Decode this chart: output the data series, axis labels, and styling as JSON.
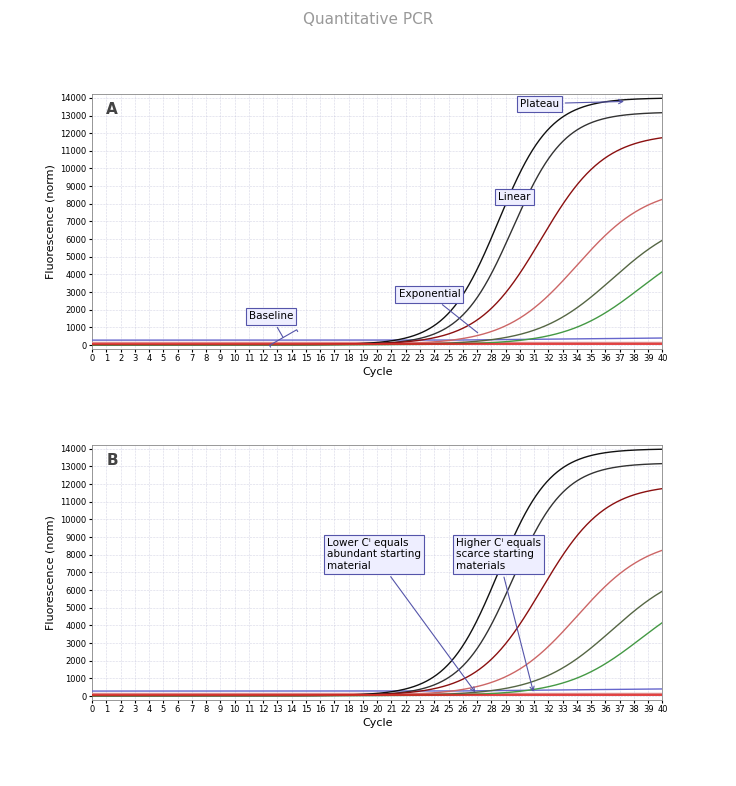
{
  "title": "Quantitative PCR",
  "title_fontsize": 11,
  "title_color": "#999999",
  "xlabel": "Cycle",
  "ylabel": "Fluorescence (norm)",
  "xlim": [
    0,
    40
  ],
  "ylim": [
    -200,
    14200
  ],
  "yticks": [
    0,
    1000,
    2000,
    3000,
    4000,
    5000,
    6000,
    7000,
    8000,
    9000,
    10000,
    11000,
    12000,
    13000,
    14000
  ],
  "xticks": [
    0,
    1,
    2,
    3,
    4,
    5,
    6,
    7,
    8,
    9,
    10,
    11,
    12,
    13,
    14,
    15,
    16,
    17,
    18,
    19,
    20,
    21,
    22,
    23,
    24,
    25,
    26,
    27,
    28,
    29,
    30,
    31,
    32,
    33,
    34,
    35,
    36,
    37,
    38,
    39,
    40
  ],
  "threshold_y": 80,
  "threshold_color": "#dd2222",
  "bg_color": "#ffffff",
  "grid_color": "#aaaacc",
  "panel_A_label": "A",
  "panel_B_label": "B",
  "annotation_box_color": "#5555aa",
  "annotation_box_facecolor": "#eeeeff",
  "curves": [
    {
      "midpoint": 28.5,
      "k": 0.55,
      "ymax": 14000,
      "baseline": 20,
      "color": "#111111",
      "lw": 1.0
    },
    {
      "midpoint": 29.5,
      "k": 0.55,
      "ymax": 13200,
      "baseline": 20,
      "color": "#333333",
      "lw": 1.0
    },
    {
      "midpoint": 31.5,
      "k": 0.45,
      "ymax": 12000,
      "baseline": 20,
      "color": "#8B1010",
      "lw": 1.0
    },
    {
      "midpoint": 34.0,
      "k": 0.4,
      "ymax": 9000,
      "baseline": 20,
      "color": "#cc6666",
      "lw": 1.0
    },
    {
      "midpoint": 36.5,
      "k": 0.38,
      "ymax": 7500,
      "baseline": 20,
      "color": "#556644",
      "lw": 1.0
    },
    {
      "midpoint": 38.5,
      "k": 0.38,
      "ymax": 6500,
      "baseline": 20,
      "color": "#449944",
      "lw": 1.0
    }
  ],
  "baseline_curve": {
    "color": "#6666cc",
    "lw": 1.0,
    "y": 280
  },
  "pink_curve": {
    "color": "#dd8888",
    "lw": 1.0,
    "y": 160
  },
  "cq_threshold": 80,
  "cq_marker_color": "#2244aa"
}
